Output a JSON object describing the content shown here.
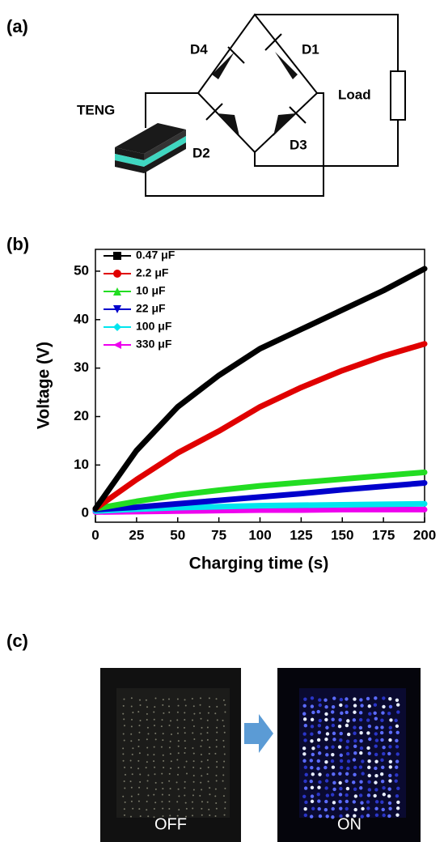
{
  "panels": {
    "a": {
      "label": "(a)",
      "teng": "TENG",
      "d1": "D1",
      "d2": "D2",
      "d3": "D3",
      "d4": "D4",
      "load": "Load"
    },
    "b": {
      "label": "(b)"
    },
    "c": {
      "label": "(c)",
      "off": "OFF",
      "on": "ON"
    }
  },
  "chart_data": {
    "type": "line",
    "xlabel": "Charging time (s)",
    "ylabel": "Voltage (V)",
    "x": [
      0,
      25,
      50,
      75,
      100,
      125,
      150,
      175,
      200
    ],
    "series": [
      {
        "name": "0.47 μF",
        "color": "#000000",
        "marker": "square",
        "values": [
          1,
          13,
          22,
          28.5,
          34,
          38,
          42,
          46,
          50.5
        ]
      },
      {
        "name": "2.2 μF",
        "color": "#e00000",
        "marker": "circle",
        "values": [
          1,
          7,
          12.5,
          17,
          22,
          26,
          29.5,
          32.5,
          35
        ]
      },
      {
        "name": "10 μF",
        "color": "#22dd22",
        "marker": "triangle-up",
        "values": [
          1,
          2.5,
          3.8,
          4.8,
          5.7,
          6.4,
          7.1,
          7.8,
          8.5
        ]
      },
      {
        "name": "22 μF",
        "color": "#0000cc",
        "marker": "triangle-down",
        "values": [
          0.8,
          1.3,
          2,
          2.7,
          3.4,
          4.1,
          4.9,
          5.6,
          6.3
        ]
      },
      {
        "name": "100 μF",
        "color": "#00e5ee",
        "marker": "diamond",
        "values": [
          0.5,
          0.9,
          1.2,
          1.4,
          1.6,
          1.7,
          1.8,
          1.9,
          2
        ]
      },
      {
        "name": "330 μF",
        "color": "#ee00ee",
        "marker": "triangle-left",
        "values": [
          0.3,
          0.4,
          0.5,
          0.6,
          0.7,
          0.7,
          0.8,
          0.8,
          0.8
        ]
      }
    ],
    "xlim": [
      0,
      200
    ],
    "xticks": [
      0,
      25,
      50,
      75,
      100,
      125,
      150,
      175,
      200
    ],
    "ylim": [
      -1.8,
      54.5
    ],
    "yticks": [
      0,
      10,
      20,
      30,
      40,
      50
    ],
    "legend": "upper left"
  }
}
